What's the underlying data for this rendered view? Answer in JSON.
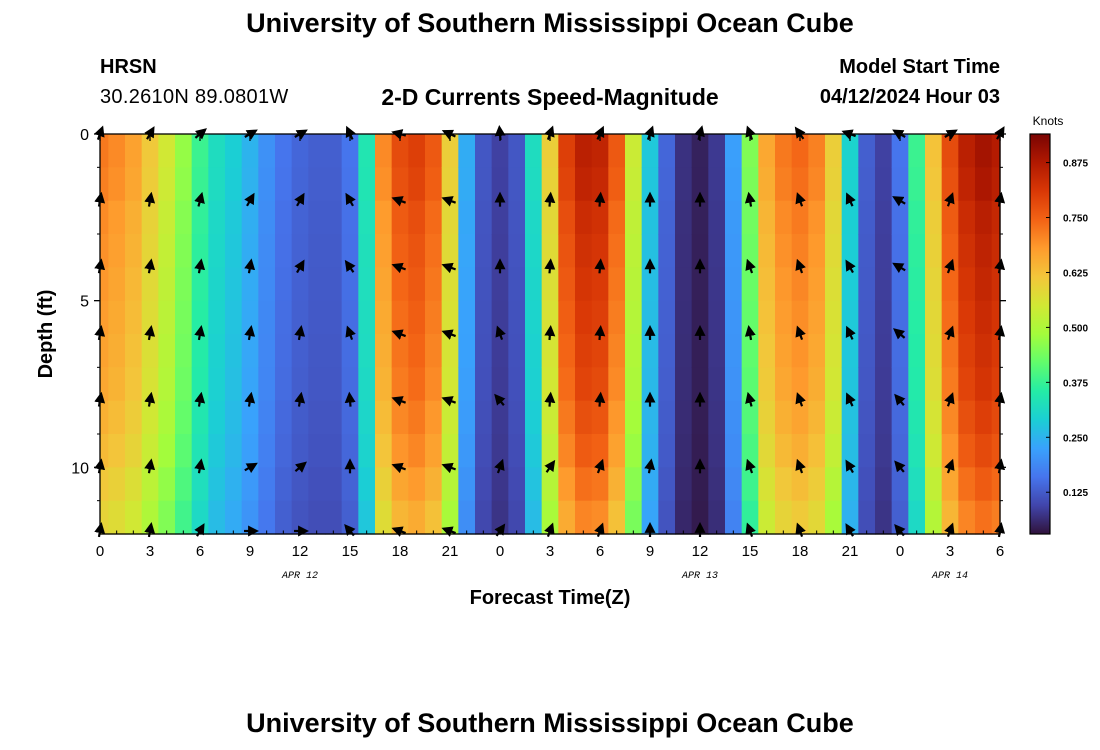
{
  "header": {
    "title": "University of Southern Mississippi Ocean Cube",
    "station": "HRSN",
    "coordinates": "30.2610N  89.0801W",
    "subtitle": "2-D Currents Speed-Magnitude",
    "model_start_label": "Model Start Time",
    "model_start_value": "04/12/2024 Hour 03"
  },
  "footer": {
    "title": "University of Southern Mississippi Ocean Cube"
  },
  "colors": {
    "colormap": [
      "#30123b",
      "#4145ab",
      "#4675ed",
      "#39a2fc",
      "#1bcfd4",
      "#24eca6",
      "#61fc6c",
      "#a4fc3b",
      "#d1e834",
      "#f3c63a",
      "#fe9b2d",
      "#f36315",
      "#d93806",
      "#b11901",
      "#7a0403"
    ]
  },
  "chart_data": {
    "type": "heatmap",
    "title": "2-D Currents Speed-Magnitude",
    "xlabel": "Forecast Time(Z)",
    "ylabel": "Depth (ft)",
    "x_hours": [
      0,
      1,
      2,
      3,
      4,
      5,
      6,
      7,
      8,
      9,
      10,
      11,
      12,
      13,
      14,
      15,
      16,
      17,
      18,
      19,
      20,
      21,
      22,
      23,
      24,
      25,
      26,
      27,
      28,
      29,
      30,
      31,
      32,
      33,
      34,
      35,
      36,
      37,
      38,
      39,
      40,
      41,
      42,
      43,
      44,
      45,
      46,
      47,
      48,
      49,
      50,
      51,
      52,
      53,
      54
    ],
    "xlim": [
      0,
      54
    ],
    "x_tick_positions": [
      0,
      3,
      6,
      9,
      12,
      15,
      18,
      21,
      24,
      27,
      30,
      33,
      36,
      39,
      42,
      45,
      48,
      51,
      54
    ],
    "x_tick_labels": [
      "0",
      "3",
      "6",
      "9",
      "12",
      "15",
      "18",
      "21",
      "0",
      "3",
      "6",
      "9",
      "12",
      "15",
      "18",
      "21",
      "0",
      "3",
      "6"
    ],
    "date_labels": [
      {
        "hour": 12,
        "text": "APR 12"
      },
      {
        "hour": 36,
        "text": "APR 13"
      },
      {
        "hour": 51,
        "text": "APR 14"
      }
    ],
    "ylim": [
      0,
      12
    ],
    "y_tick_positions": [
      0,
      5,
      10
    ],
    "y_tick_labels": [
      "0",
      "5",
      "10"
    ],
    "y_depths": [
      0,
      1,
      2,
      3,
      4,
      5,
      6,
      7,
      8,
      9,
      10,
      11
    ],
    "speed_profile_knots": [
      0.72,
      0.7,
      0.67,
      0.61,
      0.55,
      0.47,
      0.38,
      0.32,
      0.29,
      0.25,
      0.2,
      0.16,
      0.14,
      0.13,
      0.13,
      0.16,
      0.34,
      0.7,
      0.78,
      0.8,
      0.76,
      0.6,
      0.24,
      0.12,
      0.09,
      0.12,
      0.32,
      0.6,
      0.8,
      0.86,
      0.85,
      0.76,
      0.54,
      0.28,
      0.14,
      0.07,
      0.05,
      0.08,
      0.22,
      0.45,
      0.66,
      0.72,
      0.74,
      0.71,
      0.6,
      0.3,
      0.13,
      0.09,
      0.16,
      0.38,
      0.62,
      0.78,
      0.86,
      0.89,
      0.87
    ],
    "depth_factor": [
      1.0,
      0.99,
      0.97,
      0.96,
      0.95,
      0.94,
      0.93,
      0.92,
      0.9,
      0.88,
      0.85,
      0.82
    ],
    "vector_hours": [
      0,
      3,
      6,
      9,
      12,
      15,
      18,
      21,
      24,
      27,
      30,
      33,
      36,
      39,
      42,
      45,
      48,
      51,
      54
    ],
    "vector_depths": [
      0,
      2,
      4,
      6,
      8,
      10,
      12
    ],
    "vector_directions_deg": [
      [
        -70,
        -60,
        -40,
        -30,
        -30,
        -115,
        -165,
        -155,
        -95,
        -70,
        -65,
        -70,
        -75,
        -110,
        -125,
        -160,
        -150,
        -30,
        -60
      ],
      [
        -80,
        -80,
        -75,
        -60,
        -60,
        -120,
        -160,
        -160,
        -90,
        -85,
        -85,
        -90,
        -90,
        -100,
        -110,
        -115,
        -150,
        -70,
        -80
      ],
      [
        -80,
        -80,
        -80,
        -80,
        -60,
        -125,
        -160,
        -160,
        -90,
        -85,
        -85,
        -90,
        -90,
        -110,
        -110,
        -120,
        -150,
        -70,
        -80
      ],
      [
        -80,
        -80,
        -80,
        -80,
        -80,
        -110,
        -160,
        -160,
        -110,
        -85,
        -85,
        -90,
        -90,
        -100,
        -110,
        -115,
        -140,
        -70,
        -80
      ],
      [
        -80,
        -80,
        -80,
        -80,
        -80,
        -95,
        -160,
        -160,
        -130,
        -85,
        -85,
        -90,
        -90,
        -105,
        -110,
        -115,
        -130,
        -70,
        -80
      ],
      [
        -80,
        -80,
        -80,
        -30,
        -40,
        -90,
        -160,
        -160,
        -70,
        -55,
        -70,
        -80,
        -90,
        -110,
        -110,
        -120,
        -130,
        -70,
        -80
      ],
      [
        -80,
        -80,
        -60,
        0,
        0,
        -130,
        -160,
        -160,
        -55,
        -70,
        -70,
        -90,
        -90,
        -110,
        -110,
        -120,
        -130,
        -70,
        -80
      ]
    ],
    "colorbar": {
      "label": "Knots",
      "range": [
        0.03,
        0.94
      ],
      "tick_values": [
        0.125,
        0.25,
        0.375,
        0.5,
        0.625,
        0.75,
        0.875
      ],
      "tick_labels": [
        "0.125",
        "0.250",
        "0.375",
        "0.500",
        "0.625",
        "0.750",
        "0.875"
      ]
    }
  }
}
